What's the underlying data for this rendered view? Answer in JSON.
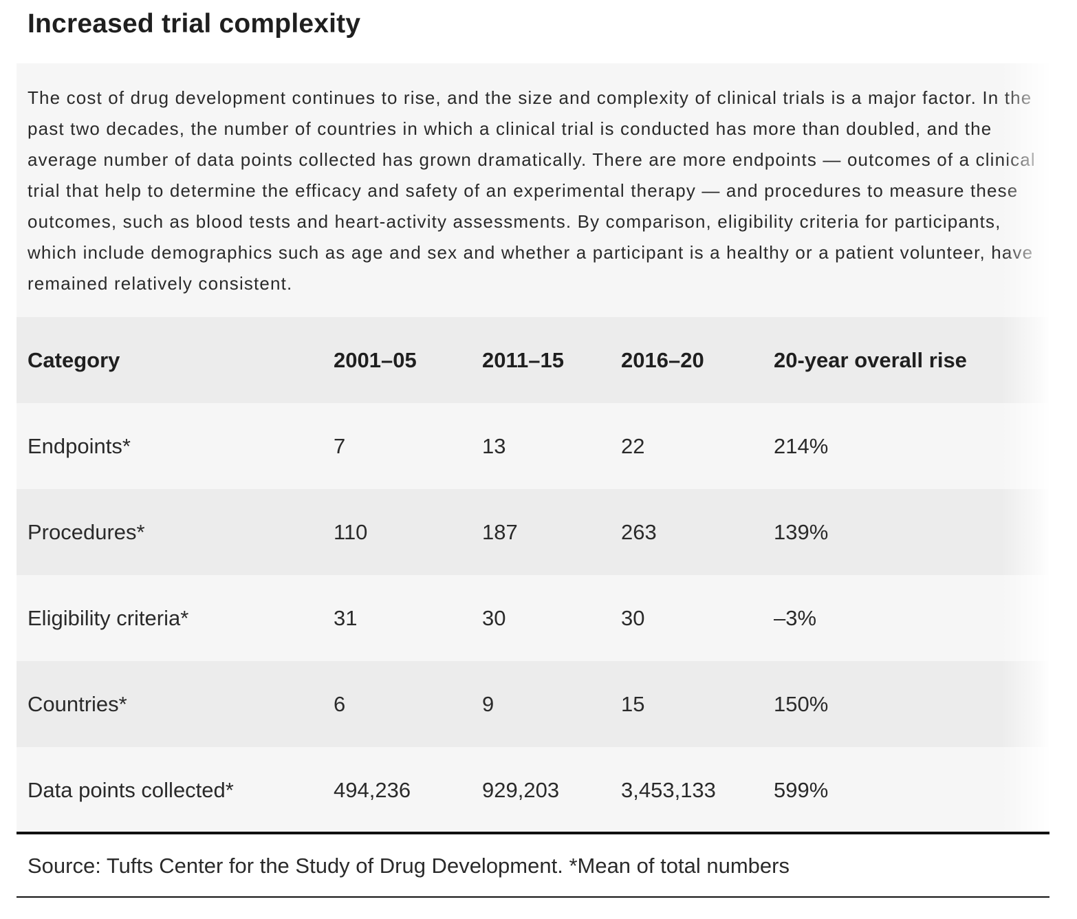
{
  "title": "Increased trial complexity",
  "intro": "The cost of drug development continues to rise, and the size and complexity of clinical trials is a major factor. In the past two decades, the number of countries in which a clinical trial is conducted has more than doubled, and the average number of data points collected has grown dramatically. There are more endpoints — outcomes of a clinical trial that help to determine the efficacy and safety of an experimental therapy — and procedures to measure these outcomes, such as blood tests and heart-activity assessments. By comparison, eligibility criteria for participants, which include demographics such as age and sex and whether a participant is a healthy or a patient volunteer, have remained relatively consistent.",
  "table": {
    "headers": [
      "Category",
      "2001–05",
      "2011–15",
      "2016–20",
      "20-year overall rise"
    ],
    "rows": [
      [
        "Endpoints*",
        "7",
        "13",
        "22",
        "214%"
      ],
      [
        "Procedures*",
        "110",
        "187",
        "263",
        "139%"
      ],
      [
        "Eligibility criteria*",
        "31",
        "30",
        "30",
        "–3%"
      ],
      [
        "Countries*",
        "6",
        "9",
        "15",
        "150%"
      ],
      [
        "Data points collected*",
        "494,236",
        "929,203",
        "3,453,133",
        "599%"
      ]
    ]
  },
  "source": "Source: Tufts Center for the Study of Drug Development. *Mean of total numbers",
  "colors": {
    "panel_background": "#f6f6f6",
    "row_dark": "#ececec",
    "row_light": "#f6f6f6",
    "rule": "#111111",
    "text": "#2a2a2a"
  }
}
